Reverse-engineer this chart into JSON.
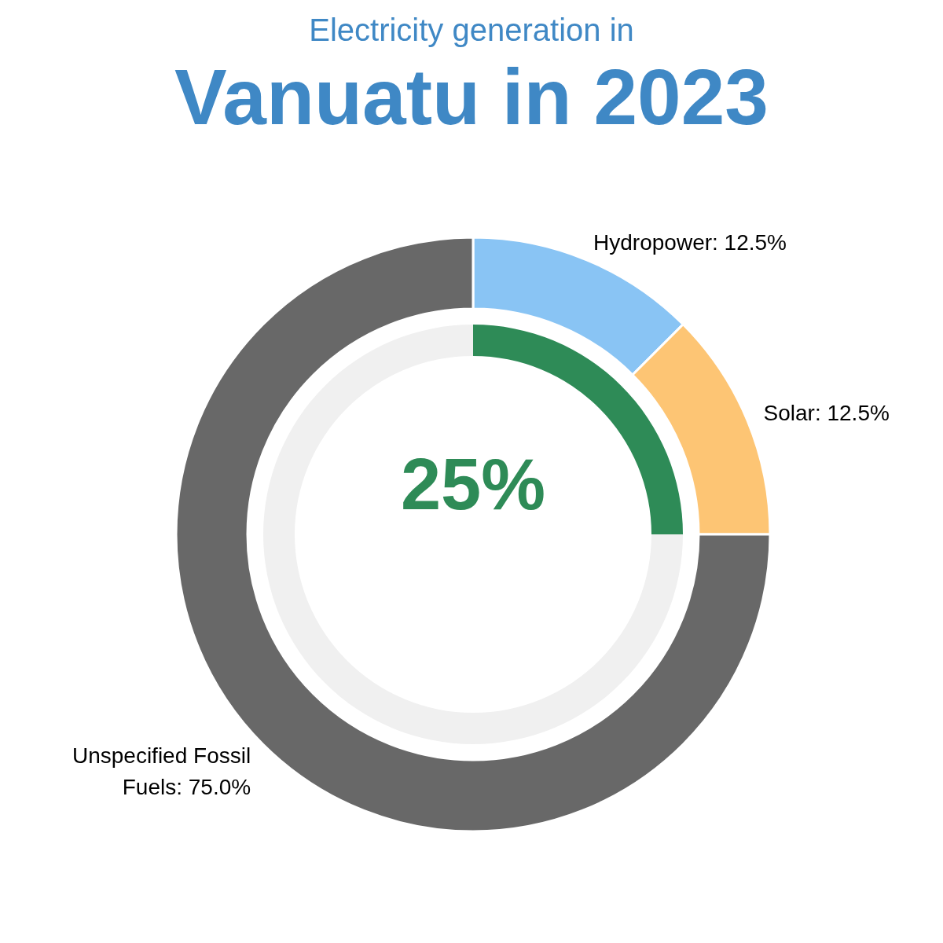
{
  "chart_data": [
    {
      "type": "donut",
      "title": "Vanuatu in 2023",
      "subtitle": "Electricity generation in",
      "categories": [
        "Hydropower",
        "Solar",
        "Unspecified Fossil Fuels"
      ],
      "values": [
        12.5,
        12.5,
        75.0
      ],
      "value_labels": [
        "12.5%",
        "12.5%",
        "75.0%"
      ],
      "colors": [
        "#89c4f4",
        "#fdc574",
        "#686868"
      ]
    },
    {
      "type": "donut",
      "categories": [
        null,
        null
      ],
      "values": [
        25,
        75
      ],
      "colors": [
        "#2e8b57",
        "#f0f0f0"
      ],
      "annotations": [
        "25%"
      ]
    }
  ]
}
